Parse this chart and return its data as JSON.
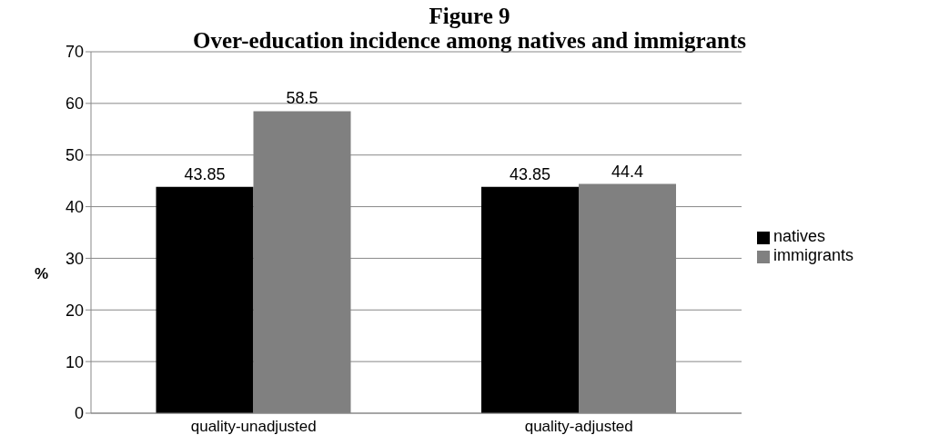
{
  "chart_data": {
    "type": "bar",
    "title": "Figure 9",
    "subtitle": "Over-education incidence among natives and immigrants",
    "ylabel": "%",
    "categories": [
      "quality-unadjusted",
      "quality-adjusted"
    ],
    "series": [
      {
        "name": "natives",
        "color": "#000000",
        "values": [
          43.85,
          43.85
        ]
      },
      {
        "name": "immigrants",
        "color": "#808080",
        "values": [
          58.5,
          44.4
        ]
      }
    ],
    "ylim": [
      0,
      70
    ],
    "yticks": [
      0,
      10,
      20,
      30,
      40,
      50,
      60,
      70
    ],
    "grid": "y",
    "legend": "right",
    "data_labels": true
  }
}
